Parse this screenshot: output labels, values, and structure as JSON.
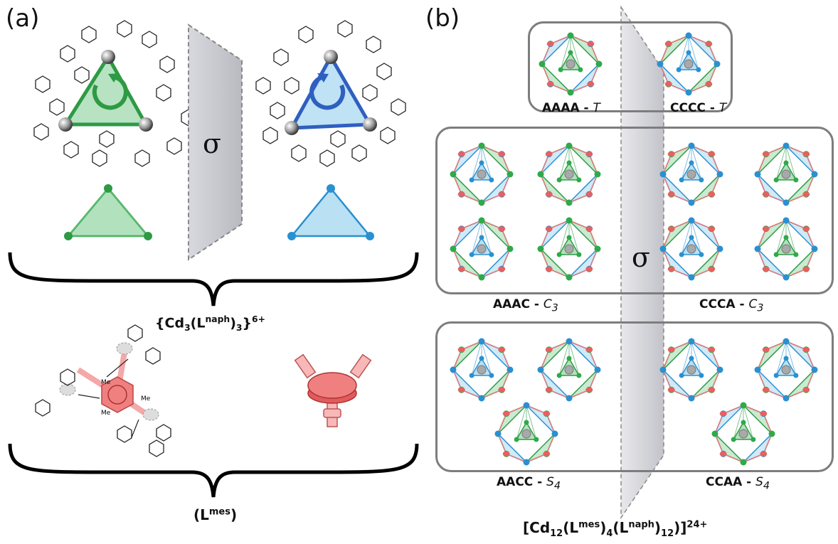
{
  "panel_a": {
    "label": "(a)",
    "sigma": "σ",
    "formula": {
      "pre": "{Cd",
      "sub1": "3",
      "mid1": "(L",
      "sup1": "naph",
      "mid2": ")",
      "sub2": "3",
      "mid3": "}",
      "sup2": "6+"
    },
    "ligand": {
      "pre": "(L",
      "sup": "mes",
      "post": ")"
    },
    "methyl_label": "Me",
    "colors": {
      "green": "#2e9a44",
      "blue": "#2f5fc0",
      "green_fill": "#9fd9ad",
      "blue_fill": "#a9d8f0",
      "mesityl": "#f08080"
    }
  },
  "panel_b": {
    "label": "(b)",
    "sigma": "σ",
    "isomers": [
      {
        "name": "AAAA",
        "sym": "T"
      },
      {
        "name": "CCCC",
        "sym": "T"
      },
      {
        "name": "AAAC",
        "sym": "C",
        "sym_sub": "3"
      },
      {
        "name": "CCCA",
        "sym": "C",
        "sym_sub": "3"
      },
      {
        "name": "AACC",
        "sym": "S",
        "sym_sub": "4"
      },
      {
        "name": "CCAA",
        "sym": "S",
        "sym_sub": "4"
      }
    ],
    "separator": " - ",
    "formula": {
      "pre": "[Cd",
      "sub1": "12",
      "mid1": "(L",
      "sup1": "mes",
      "mid2": ")",
      "sub2": "4",
      "mid3": "(L",
      "sup2": "naph",
      "mid4": ")",
      "sub3": "12",
      "mid5": ")]",
      "sup3": "24+"
    }
  }
}
